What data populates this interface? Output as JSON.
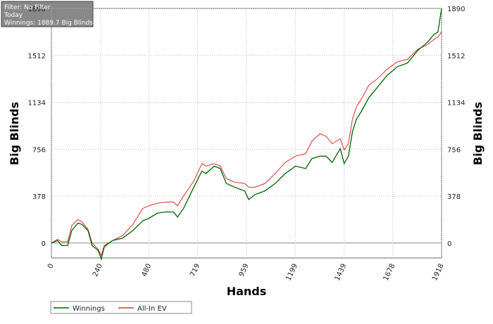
{
  "chart_data": {
    "type": "line",
    "info": [
      "Filter: No Filter",
      "Today",
      "Winnings: 1889.7 Big Blinds"
    ],
    "xlabel": "Hands",
    "ylabel": "Big Blinds",
    "x": [
      0,
      30,
      50,
      80,
      100,
      130,
      150,
      180,
      200,
      230,
      245,
      260,
      300,
      350,
      400,
      450,
      480,
      520,
      560,
      600,
      620,
      650,
      700,
      740,
      760,
      800,
      830,
      860,
      900,
      950,
      970,
      1000,
      1050,
      1100,
      1150,
      1200,
      1250,
      1280,
      1320,
      1350,
      1380,
      1420,
      1439,
      1460,
      1480,
      1500,
      1520,
      1560,
      1600,
      1650,
      1700,
      1750,
      1800,
      1850,
      1880,
      1900,
      1918
    ],
    "series": [
      {
        "name": "Winnings",
        "color": "#006400",
        "values": [
          0,
          20,
          -20,
          -20,
          100,
          160,
          150,
          100,
          -20,
          -60,
          -130,
          -30,
          20,
          40,
          100,
          180,
          200,
          240,
          250,
          250,
          210,
          280,
          450,
          580,
          560,
          620,
          600,
          480,
          450,
          420,
          350,
          390,
          420,
          480,
          560,
          620,
          600,
          680,
          700,
          700,
          650,
          760,
          640,
          700,
          900,
          1000,
          1050,
          1170,
          1250,
          1350,
          1420,
          1450,
          1550,
          1620,
          1680,
          1700,
          1890
        ]
      },
      {
        "name": "All-In EV",
        "color": "#e0302a",
        "values": [
          0,
          30,
          10,
          10,
          140,
          190,
          170,
          110,
          0,
          -50,
          -100,
          -20,
          20,
          60,
          150,
          280,
          300,
          320,
          330,
          330,
          300,
          380,
          500,
          640,
          620,
          640,
          620,
          520,
          490,
          480,
          450,
          450,
          480,
          560,
          650,
          700,
          720,
          820,
          880,
          860,
          800,
          840,
          750,
          800,
          1000,
          1100,
          1150,
          1270,
          1320,
          1400,
          1460,
          1480,
          1560,
          1600,
          1640,
          1660,
          1700
        ]
      }
    ],
    "xlim": [
      0,
      1918
    ],
    "xticks": [
      0,
      240,
      480,
      719,
      959,
      1199,
      1439,
      1678,
      1918
    ],
    "ylim": [
      -120,
      1890
    ],
    "yticks": [
      0,
      378,
      756,
      1134,
      1512,
      1890
    ],
    "grid": true
  }
}
